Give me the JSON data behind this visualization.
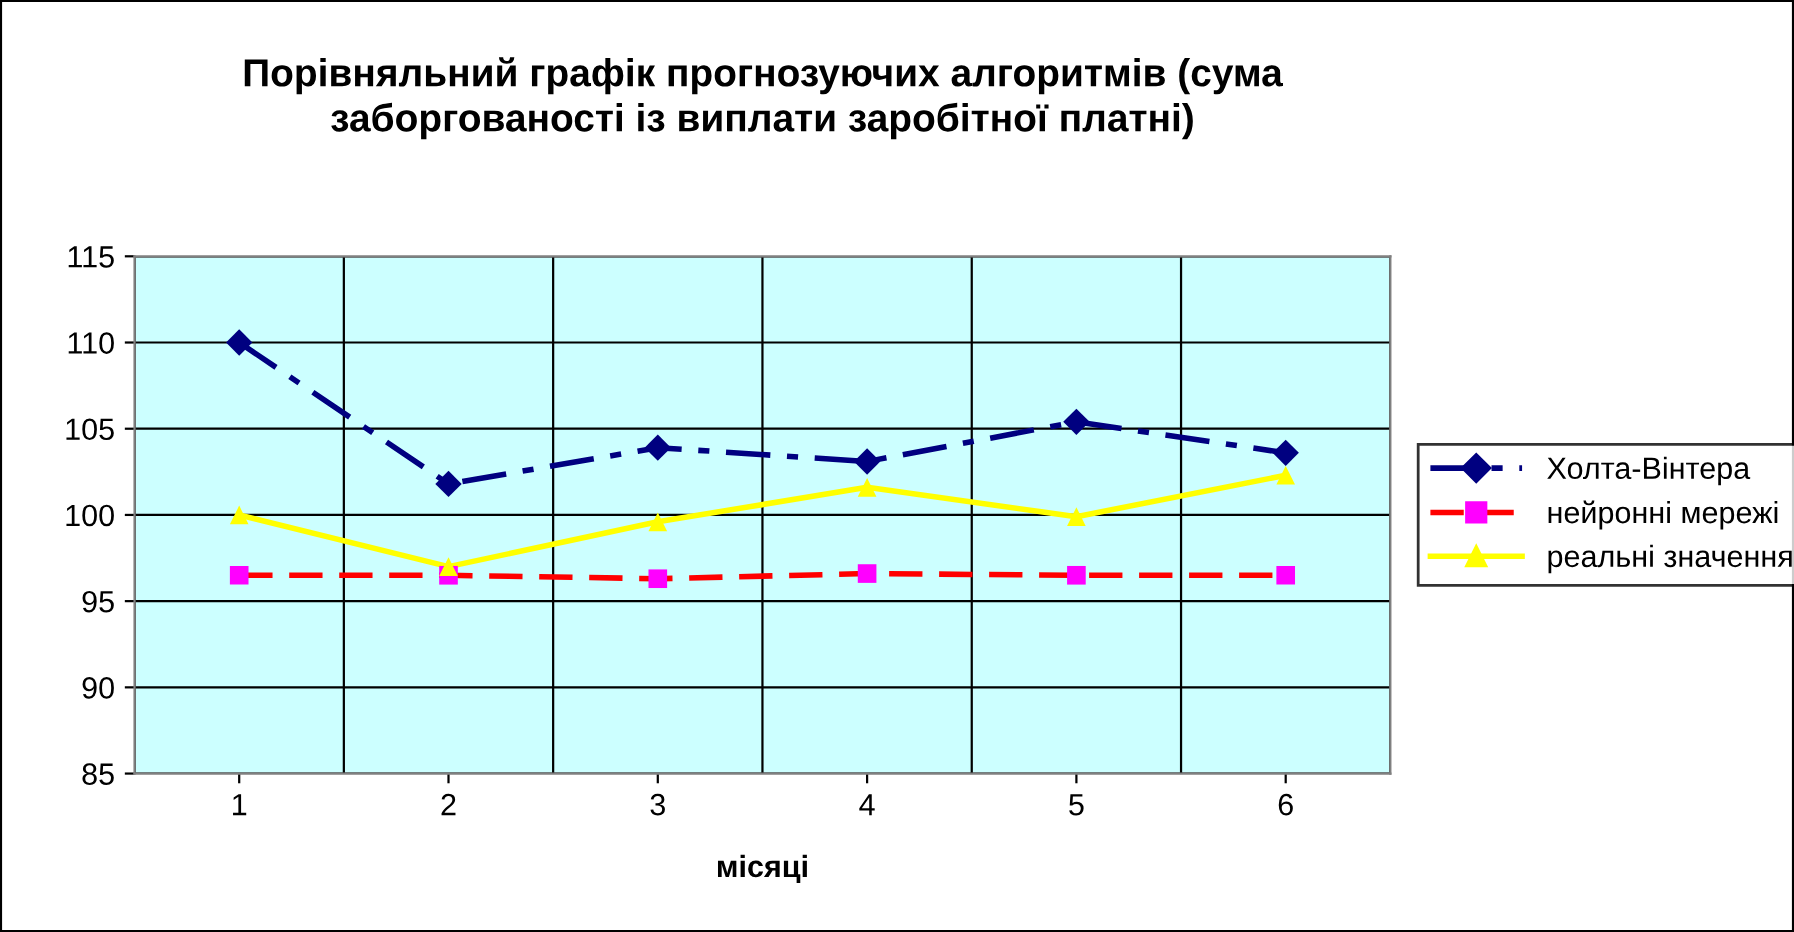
{
  "chart_data": {
    "type": "line",
    "title": "Порівняльний графік прогнозуючих алгоритмів (сума\nзаборгованості із виплати заробітної платні)",
    "xlabel": "місяці",
    "categories": [
      "1",
      "2",
      "3",
      "4",
      "5",
      "6"
    ],
    "series": [
      {
        "name": "Холта-Вінтера",
        "color": "#000080",
        "colors": [
          "#000080",
          "#000080",
          "#000080",
          "#000080",
          "#000080",
          "#000080"
        ],
        "marker": "diamond",
        "line_style": "dashdot",
        "values": [
          110.0,
          101.8,
          103.9,
          103.1,
          105.4,
          103.6
        ]
      },
      {
        "name": "нейронні мережі",
        "color": "#ff0000",
        "colors": [
          "#ff00ff",
          "#ff00ff",
          "#ff00ff",
          "#ff00ff",
          "#ff00ff",
          "#ff00ff"
        ],
        "marker": "square",
        "line_style": "dashed",
        "values": [
          96.5,
          96.5,
          96.3,
          96.6,
          96.5,
          96.5
        ]
      },
      {
        "name": "реальні значення",
        "color": "#ffff00",
        "colors": [
          "#ffff00",
          "#ffff00",
          "#ffff00",
          "#ffff00",
          "#ffff00",
          "#ffff00"
        ],
        "marker": "triangle",
        "line_style": "solid",
        "values": [
          100.0,
          97.0,
          99.6,
          101.6,
          99.9,
          102.3
        ]
      }
    ],
    "ylim": [
      85,
      115
    ],
    "yticks": [
      85,
      90,
      95,
      100,
      105,
      110,
      115
    ],
    "grid": true,
    "legend": "right"
  }
}
